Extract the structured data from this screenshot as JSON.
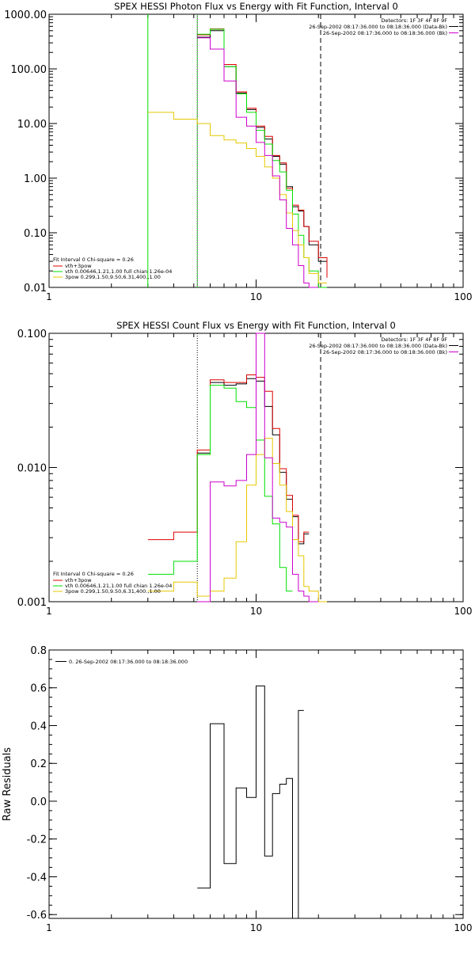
{
  "chart_data": [
    {
      "type": "line",
      "title": "SPEX HESSI Photon Flux vs Energy with Fit Function, Interval 0",
      "xscale": "log",
      "yscale": "log",
      "xlim": [
        1,
        100
      ],
      "ylim": [
        0.01,
        1000
      ],
      "xticks": [
        "1",
        "10",
        "100"
      ],
      "yticks": [
        "1000.00",
        "100.00",
        "10.00",
        "1.00",
        "0.10",
        "0.01"
      ],
      "ytick_values": [
        1000,
        100,
        10,
        1,
        0.1,
        0.01
      ],
      "xlabel": "",
      "ylabel": "",
      "vlines": [
        {
          "x": 3.0,
          "color": "#00e000",
          "style": "solid"
        },
        {
          "x": 5.2,
          "color": "#00e000",
          "style": "solid"
        },
        {
          "x": 5.2,
          "color": "#cc00cc",
          "style": "dotted"
        },
        {
          "x": 20.5,
          "color": "#000000",
          "style": "dashed"
        }
      ],
      "legend_topright": [
        "Detectors: 1F 3F 4F 8F 9F",
        "26-Sep-2002 08:17:36.000 to 08:18:36.000 (Data-Bk)",
        "26-Sep-2002 08:17:36.000 to 08:18:36.000 (Bk)"
      ],
      "legend_topright_colors": [
        "",
        "#000000",
        "#cc00cc"
      ],
      "legend_bottomleft_header": "Fit Interval 0   Chi-square = 0.26",
      "legend_bottomleft": [
        {
          "name": "vth+3pow",
          "color": "#dd0000"
        },
        {
          "name": "vth 0.00646,1.21,1.00  full chian 1.26e-04",
          "color": "#00e000"
        },
        {
          "name": "3pow 0.299,1.50,9.50,6.31,400.,1.00",
          "color": "#e6c800"
        }
      ],
      "edges": [
        3,
        4,
        5.2,
        6,
        7,
        8,
        9,
        10,
        11,
        12,
        13,
        14,
        15,
        16,
        17,
        18,
        20,
        22
      ],
      "series": [
        {
          "name": "Data-Bk",
          "color": "#000000",
          "start": 2,
          "values": [
            380,
            500,
            110,
            36,
            18,
            8.5,
            5.2,
            2.5,
            1.8,
            0.7,
            0.3,
            0.25,
            0.13,
            0.06,
            0.03
          ]
        },
        {
          "name": "vth+3pow",
          "color": "#dd0000",
          "start": 2,
          "values": [
            420,
            540,
            120,
            38,
            19,
            9,
            5.8,
            2.6,
            1.9,
            0.65,
            0.32,
            0.26,
            0.13,
            0.07,
            0.035,
            0.015
          ]
        },
        {
          "name": "vth",
          "color": "#00e000",
          "start": 2,
          "values": [
            430,
            530,
            110,
            35,
            16,
            7.5,
            4.2,
            2.1,
            1.3,
            0.6,
            0.22,
            0.09,
            0.035,
            0.02,
            0.01
          ]
        },
        {
          "name": "3pow",
          "color": "#e6c800",
          "start": 0,
          "values": [
            16,
            12,
            10,
            6,
            5,
            4.4,
            3.5,
            2.5,
            1.6,
            1,
            0.5,
            0.23,
            0.11,
            0.06,
            0.035,
            0.018,
            0.012
          ]
        },
        {
          "name": "Bk",
          "color": "#cc00cc",
          "start": 2,
          "values": [
            370,
            230,
            60,
            13,
            9,
            4.5,
            2.6,
            1.1,
            0.4,
            0.12,
            0.06,
            0.025,
            0.012,
            0.01
          ]
        }
      ]
    },
    {
      "type": "line",
      "title": "SPEX HESSI Count Flux vs Energy with Fit Function, Interval 0",
      "xscale": "log",
      "yscale": "log",
      "xlim": [
        1,
        100
      ],
      "ylim": [
        0.001,
        0.1
      ],
      "xticks": [
        "1",
        "10",
        "100"
      ],
      "yticks": [
        "0.100",
        "0.010",
        "0.001"
      ],
      "ytick_values": [
        0.1,
        0.01,
        0.001
      ],
      "xlabel": "",
      "ylabel": "",
      "vlines": [
        {
          "x": 5.2,
          "color": "#000000",
          "style": "dotted"
        },
        {
          "x": 20.5,
          "color": "#000000",
          "style": "dashed"
        }
      ],
      "legend_topright": [
        "Detectors: 1F 3F 4F 8F 9F",
        "26-Sep-2002 08:17:36.000 to 08:18:36.000 (Data-Bk)",
        "26-Sep-2002 08:17:36.000 to 08:18:36.000 (Bk)"
      ],
      "legend_topright_colors": [
        "",
        "#000000",
        "#cc00cc"
      ],
      "legend_bottomleft_header": "Fit Interval 0   Chi-square = 0.26",
      "legend_bottomleft": [
        {
          "name": "vth+3pow",
          "color": "#dd0000"
        },
        {
          "name": "vth 0.00646,1.21,1.00  full chian 1.26e-04",
          "color": "#00e000"
        },
        {
          "name": "3pow 0.299,1.50,9.50,6.31,400.,1.00",
          "color": "#e6c800"
        }
      ],
      "edges": [
        3,
        4,
        5.2,
        6,
        7,
        8,
        9,
        10,
        11,
        12,
        13,
        14,
        15,
        16,
        17,
        18,
        20,
        22
      ],
      "series": [
        {
          "name": "Data-Bk",
          "color": "#000000",
          "start": 2,
          "values": [
            0.0128,
            0.043,
            0.041,
            0.042,
            0.046,
            0.044,
            0.0285,
            0.0175,
            0.0092,
            0.0058,
            0.0043,
            0.0027,
            0.0032
          ]
        },
        {
          "name": "vth+3pow",
          "color": "#dd0000",
          "start": 0,
          "values": [
            0.0029,
            0.0033,
            0.0135,
            0.045,
            0.043,
            0.043,
            0.049,
            0.047,
            0.037,
            0.0195,
            0.0098,
            0.0062,
            0.0044,
            0.0028,
            0.0033
          ]
        },
        {
          "name": "vth",
          "color": "#00e000",
          "start": 0,
          "values": [
            0.0016,
            0.002,
            0.0125,
            0.041,
            0.039,
            0.031,
            0.028,
            0.016,
            0.0061,
            0.0038,
            0.0018,
            0.0012
          ]
        },
        {
          "name": "3pow",
          "color": "#e6c800",
          "start": 0,
          "values": [
            0.0012,
            0.0014,
            0.0011,
            0.0012,
            0.0015,
            0.0028,
            0.0074,
            0.0125,
            0.0165,
            0.0107,
            0.0074,
            0.0047,
            0.0029,
            0.0022,
            0.0013,
            0.0012,
            0.00095
          ]
        },
        {
          "name": "Bk",
          "color": "#cc00cc",
          "start": 2,
          "values": [
            0.0008,
            0.0078,
            0.0073,
            0.008,
            0.0125,
            0.1,
            0.0118,
            0.0042,
            0.0039,
            0.0036,
            0.0016,
            0.0012,
            0.0011,
            0.0009
          ]
        }
      ]
    },
    {
      "type": "line",
      "title": "",
      "xscale": "log",
      "yscale": "linear",
      "xlim": [
        1,
        100
      ],
      "ylim": [
        -0.62,
        0.8
      ],
      "xticks": [
        "1",
        "10",
        "100"
      ],
      "yticks": [
        "0.8",
        "0.6",
        "0.4",
        "0.2",
        "0.0",
        "-0.2",
        "-0.4",
        "-0.6"
      ],
      "ytick_values": [
        0.8,
        0.6,
        0.4,
        0.2,
        0.0,
        -0.2,
        -0.4,
        -0.6
      ],
      "xlabel": "",
      "ylabel": "Raw Residuals",
      "legend_topleft": "0. 26-Sep-2002 08:17:36.000 to 08:18:36.000",
      "edges": [
        5.2,
        6,
        7,
        8,
        9,
        10,
        11,
        12,
        13,
        14,
        15,
        16,
        17,
        18,
        20
      ],
      "series": [
        {
          "name": "",
          "color": "#000000",
          "start": 0,
          "values": [
            -0.46,
            0.41,
            -0.33,
            0.07,
            0.02,
            0.61,
            -0.29,
            0.04,
            0.09,
            0.12,
            -0.62,
            0.48
          ]
        }
      ]
    }
  ]
}
